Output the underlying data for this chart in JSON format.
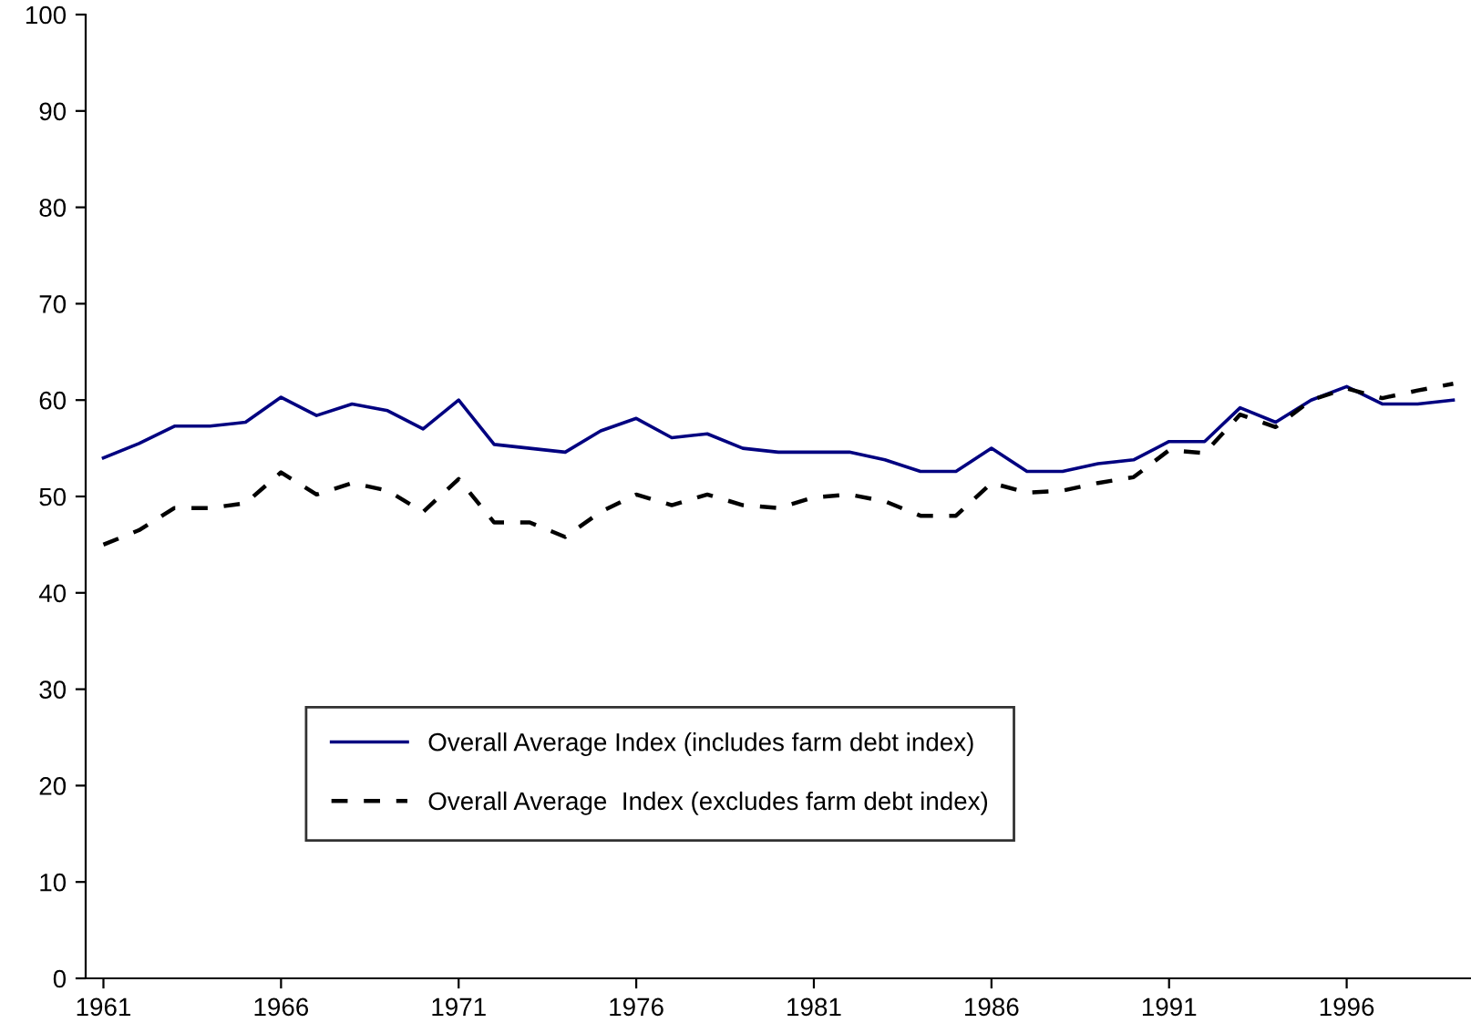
{
  "chart_data": {
    "type": "line",
    "x": [
      1961,
      1962,
      1963,
      1964,
      1965,
      1966,
      1967,
      1968,
      1969,
      1970,
      1971,
      1972,
      1973,
      1974,
      1975,
      1976,
      1977,
      1978,
      1979,
      1980,
      1981,
      1982,
      1983,
      1984,
      1985,
      1986,
      1987,
      1988,
      1989,
      1990,
      1991,
      1992,
      1993,
      1994,
      1995,
      1996,
      1997,
      1998,
      1999
    ],
    "series": [
      {
        "name": "Overall Average Index (includes farm debt index)",
        "color": "#000080",
        "line_style": "solid",
        "values": [
          54,
          55.5,
          57.3,
          57.3,
          57.7,
          60.3,
          58.4,
          59.6,
          58.9,
          57,
          60,
          55.4,
          55,
          54.6,
          56.8,
          58.1,
          56.1,
          56.5,
          55,
          54.6,
          54.6,
          54.6,
          53.8,
          52.6,
          52.6,
          55,
          52.6,
          52.6,
          53.4,
          53.8,
          55.7,
          55.7,
          59.2,
          57.7,
          60,
          61.4,
          59.6,
          59.6,
          60
        ]
      },
      {
        "name": "Overall Average  Index (excludes farm debt index)",
        "color": "#000000",
        "line_style": "dashed",
        "values": [
          45,
          46.5,
          48.8,
          48.8,
          49.3,
          52.5,
          50.2,
          51.4,
          50.6,
          48.4,
          51.8,
          47.3,
          47.3,
          45.8,
          48.4,
          50.2,
          49.1,
          50.2,
          49.1,
          48.8,
          49.9,
          50.2,
          49.5,
          48,
          48,
          51.4,
          50.4,
          50.6,
          51.4,
          52,
          54.8,
          54.5,
          58.5,
          57.2,
          60,
          61.2,
          60.2,
          61,
          61.7
        ]
      }
    ],
    "xlim": [
      1960.5,
      1999.5
    ],
    "xticks": [
      1961,
      1966,
      1971,
      1976,
      1981,
      1986,
      1991,
      1996
    ],
    "ylim": [
      0,
      100
    ],
    "yticks": [
      0,
      10,
      20,
      30,
      40,
      50,
      60,
      70,
      80,
      90,
      100
    ],
    "grid": false,
    "legend": "lower left",
    "marker": "none"
  }
}
